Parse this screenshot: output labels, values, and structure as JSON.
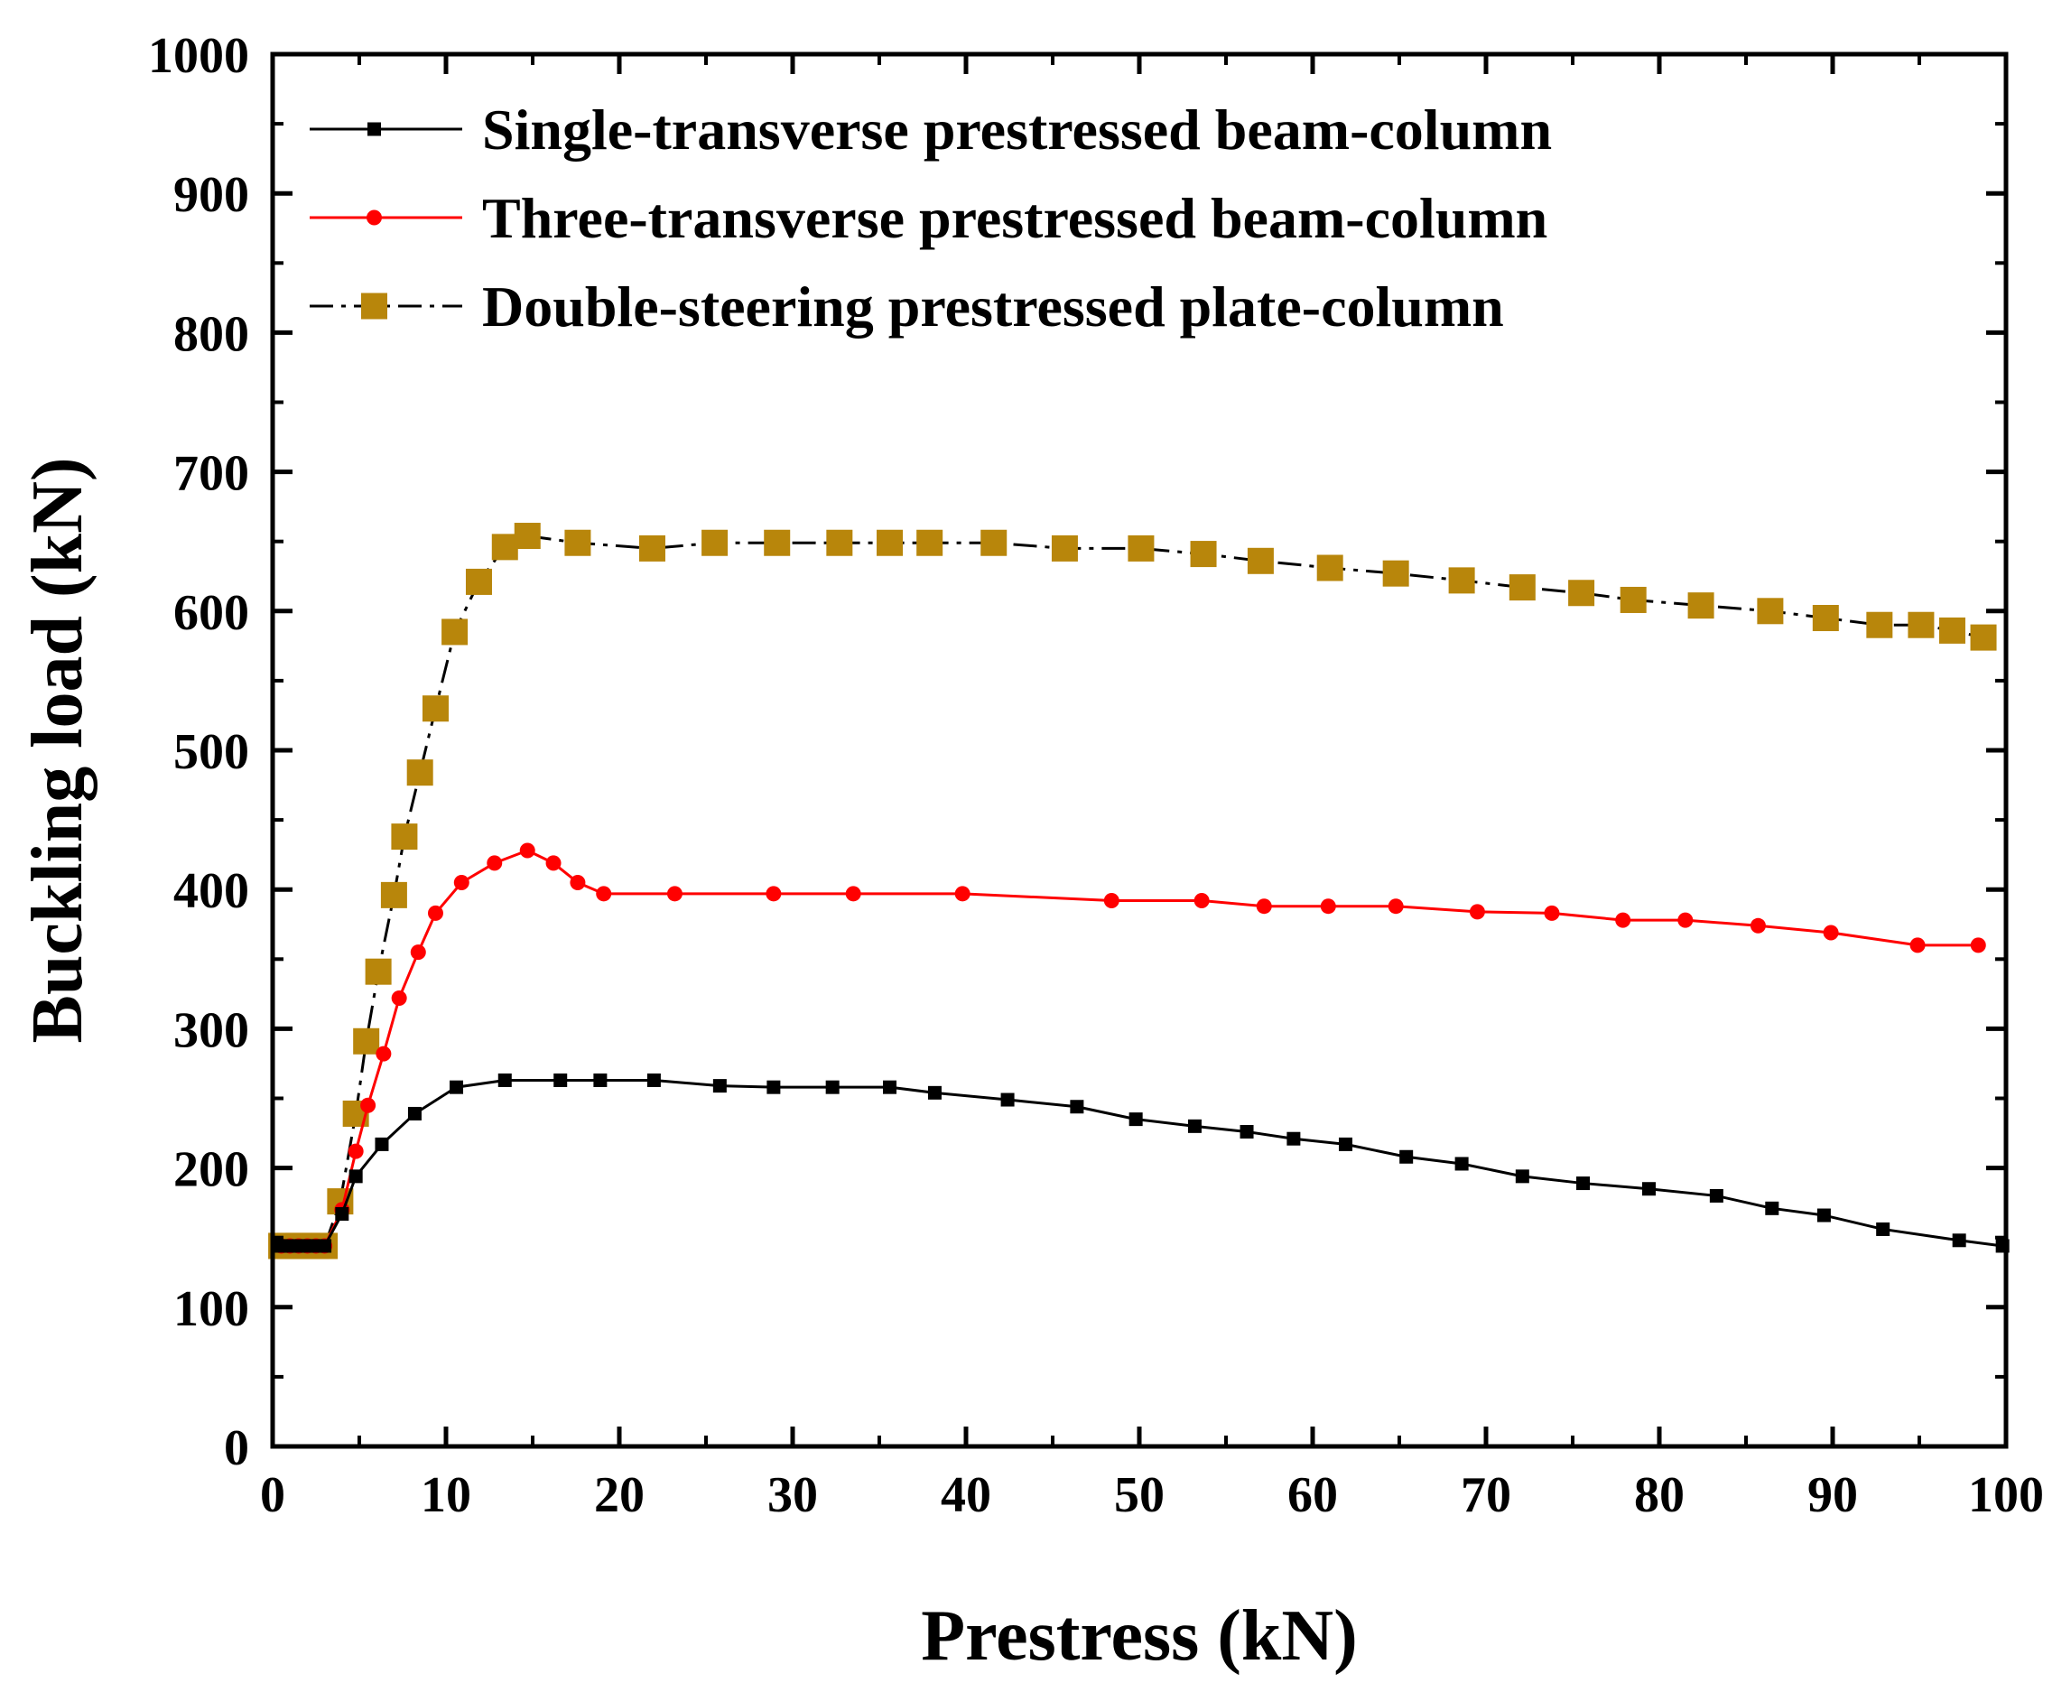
{
  "chart_data": {
    "type": "line",
    "xlabel": "Prestress (kN)",
    "ylabel": "Buckling load (kN)",
    "xlim": [
      0,
      100
    ],
    "ylim": [
      0,
      1000
    ],
    "xticks": [
      0,
      10,
      20,
      30,
      40,
      50,
      60,
      70,
      80,
      90,
      100
    ],
    "yticks": [
      0,
      100,
      200,
      300,
      400,
      500,
      600,
      700,
      800,
      900,
      1000
    ],
    "xtick_labels": [
      "0",
      "10",
      "20",
      "30",
      "40",
      "50",
      "60",
      "70",
      "80",
      "90",
      "100"
    ],
    "ytick_labels": [
      "0",
      "100",
      "200",
      "300",
      "400",
      "500",
      "600",
      "700",
      "800",
      "900",
      "1000"
    ],
    "legend_position": "top-left",
    "grid": false,
    "series": [
      {
        "name": "Single-transverse prestressed beam-column",
        "color": "#000000",
        "marker": "square",
        "line_style": "solid",
        "x": [
          0.5,
          1,
          1.5,
          2,
          2.5,
          3,
          4,
          4.8,
          6.3,
          8.2,
          10.6,
          13.4,
          16.6,
          18.9,
          22.0,
          25.8,
          28.9,
          32.3,
          35.6,
          38.2,
          42.4,
          46.4,
          49.8,
          53.2,
          56.2,
          58.9,
          61.9,
          65.4,
          68.6,
          72.1,
          75.6,
          79.4,
          83.3,
          86.5,
          89.5,
          92.9,
          97.3,
          99.8
        ],
        "y": [
          144,
          144,
          144,
          144,
          144,
          144,
          167,
          194,
          217,
          239,
          258,
          263,
          263,
          263,
          263,
          259,
          258,
          258,
          258,
          254,
          249,
          244,
          235,
          230,
          226,
          221,
          217,
          208,
          203,
          194,
          189,
          185,
          180,
          171,
          166,
          156,
          148,
          144
        ]
      },
      {
        "name": "Three-transverse prestressed beam-column",
        "color": "#ff0000",
        "marker": "circle",
        "line_style": "solid",
        "x": [
          0.5,
          1,
          1.5,
          2,
          2.5,
          3,
          4,
          4.8,
          5.5,
          6.4,
          7.3,
          8.4,
          9.4,
          10.9,
          12.8,
          14.7,
          16.2,
          17.6,
          19.1,
          23.2,
          28.9,
          33.5,
          39.8,
          48.4,
          53.6,
          57.2,
          60.9,
          64.8,
          69.5,
          73.8,
          77.9,
          81.5,
          85.7,
          89.9,
          94.9,
          98.4
        ],
        "y": [
          144,
          144,
          144,
          144,
          144,
          144,
          170,
          212,
          245,
          282,
          322,
          355,
          383,
          405,
          419,
          428,
          419,
          405,
          397,
          397,
          397,
          397,
          397,
          392,
          392,
          388,
          388,
          388,
          384,
          383,
          378,
          378,
          374,
          369,
          360,
          360
        ]
      },
      {
        "name": "Double-steering prestressed plate-column",
        "color": "#b8860b",
        "marker": "square",
        "line_style": "dashdot",
        "x": [
          0.5,
          1,
          1.5,
          2,
          2.5,
          3,
          3.9,
          4.8,
          5.4,
          6.1,
          7.0,
          7.6,
          8.5,
          9.4,
          10.5,
          11.9,
          13.4,
          14.7,
          17.6,
          21.9,
          25.5,
          29.1,
          32.7,
          35.6,
          37.9,
          41.6,
          45.7,
          50.1,
          53.7,
          57.0,
          61.0,
          64.8,
          68.6,
          72.1,
          75.5,
          78.5,
          82.4,
          86.4,
          89.6,
          92.7,
          95.1,
          96.9,
          98.7
        ],
        "y": [
          144,
          144,
          144,
          144,
          144,
          144,
          176,
          239,
          291,
          341,
          396,
          438,
          484,
          530,
          585,
          621,
          646,
          654,
          649,
          645,
          649,
          649,
          649,
          649,
          649,
          649,
          645,
          645,
          641,
          636,
          631,
          627,
          622,
          617,
          613,
          608,
          604,
          600,
          595,
          590,
          590,
          586,
          581
        ]
      }
    ]
  }
}
